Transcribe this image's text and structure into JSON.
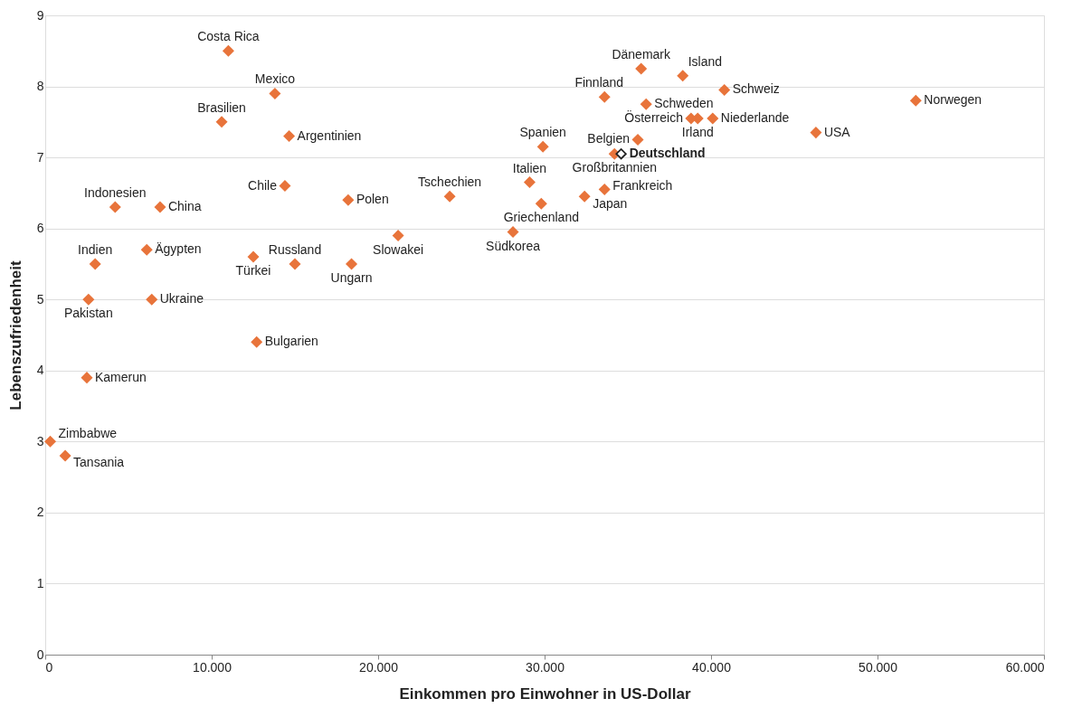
{
  "chart_data": {
    "type": "scatter",
    "xlabel": "Einkommen pro Einwohner in US-Dollar",
    "ylabel": "Lebenszufriedenheit",
    "xlim": [
      0,
      60000
    ],
    "ylim": [
      0,
      9
    ],
    "xticks": [
      0,
      {
        "value": 10000,
        "label": "10.000"
      },
      {
        "value": 20000,
        "label": "20.000"
      },
      {
        "value": 30000,
        "label": "30.000"
      },
      {
        "value": 40000,
        "label": "40.000"
      },
      {
        "value": 50000,
        "label": "50.000"
      },
      {
        "value": 60000,
        "label": "60.000"
      }
    ],
    "yticks": [
      0,
      1,
      2,
      3,
      4,
      5,
      6,
      7,
      8,
      9
    ],
    "grid": "y",
    "marker": "diamond",
    "series": [
      {
        "color": "#e8743b",
        "x": [
          11000,
          13800,
          10600,
          14650,
          14400,
          18200,
          4200,
          6900,
          3000,
          6100,
          6400,
          2600,
          12500,
          15000,
          18400,
          21200,
          12700,
          2500,
          300,
          1200,
          24300,
          29100,
          29800,
          28100,
          29900,
          32400,
          33600,
          34200,
          35600,
          33600,
          35800,
          38300,
          36100,
          38800,
          39200,
          40100,
          40800,
          46300,
          52300
        ],
        "values": [
          8.5,
          7.9,
          7.5,
          7.3,
          6.6,
          6.4,
          6.3,
          6.3,
          5.5,
          5.7,
          5.0,
          5.0,
          5.6,
          5.5,
          5.5,
          5.9,
          4.4,
          3.9,
          3.0,
          2.8,
          6.45,
          6.65,
          6.35,
          5.95,
          7.15,
          6.45,
          6.55,
          7.05,
          7.25,
          7.85,
          8.25,
          8.15,
          7.75,
          7.55,
          7.55,
          7.55,
          7.95,
          7.35,
          7.8
        ]
      },
      {
        "color": "#222222",
        "x": [
          34600
        ],
        "values": [
          7.05
        ]
      }
    ],
    "annotations": [
      {
        "text": "Costa Rica",
        "x": 11000,
        "y": 8.5
      },
      {
        "text": "Mexico",
        "x": 13800,
        "y": 7.9
      },
      {
        "text": "Brasilien",
        "x": 10600,
        "y": 7.5
      },
      {
        "text": "Argentinien",
        "x": 14650,
        "y": 7.3
      },
      {
        "text": "Chile",
        "x": 14400,
        "y": 6.6
      },
      {
        "text": "Polen",
        "x": 18200,
        "y": 6.4
      },
      {
        "text": "Indonesien",
        "x": 4200,
        "y": 6.3
      },
      {
        "text": "China",
        "x": 6900,
        "y": 6.3
      },
      {
        "text": "Indien",
        "x": 3000,
        "y": 5.5
      },
      {
        "text": "Ägypten",
        "x": 6100,
        "y": 5.7
      },
      {
        "text": "Ukraine",
        "x": 6400,
        "y": 5.0
      },
      {
        "text": "Pakistan",
        "x": 2600,
        "y": 5.0
      },
      {
        "text": "Türkei",
        "x": 12500,
        "y": 5.6
      },
      {
        "text": "Russland",
        "x": 15000,
        "y": 5.5
      },
      {
        "text": "Ungarn",
        "x": 18400,
        "y": 5.5
      },
      {
        "text": "Slowakei",
        "x": 21200,
        "y": 5.9
      },
      {
        "text": "Bulgarien",
        "x": 12700,
        "y": 4.4
      },
      {
        "text": "Kamerun",
        "x": 2500,
        "y": 3.9
      },
      {
        "text": "Zimbabwe",
        "x": 300,
        "y": 3.0
      },
      {
        "text": "Tansania",
        "x": 1200,
        "y": 2.8
      },
      {
        "text": "Tschechien",
        "x": 24300,
        "y": 6.45
      },
      {
        "text": "Italien",
        "x": 29100,
        "y": 6.65
      },
      {
        "text": "Griechenland",
        "x": 29800,
        "y": 6.35
      },
      {
        "text": "Südkorea",
        "x": 28100,
        "y": 5.95
      },
      {
        "text": "Spanien",
        "x": 29900,
        "y": 7.15
      },
      {
        "text": "Japan",
        "x": 32400,
        "y": 6.45
      },
      {
        "text": "Frankreich",
        "x": 33600,
        "y": 6.55
      },
      {
        "text": "Großbritannien",
        "x": 34200,
        "y": 7.05
      },
      {
        "text": "Belgien",
        "x": 35600,
        "y": 7.25
      },
      {
        "text": "Finnland",
        "x": 33600,
        "y": 7.85
      },
      {
        "text": "Dänemark",
        "x": 35800,
        "y": 8.25
      },
      {
        "text": "Island",
        "x": 38300,
        "y": 8.15
      },
      {
        "text": "Schweden",
        "x": 36100,
        "y": 7.75
      },
      {
        "text": "Österreich",
        "x": 38800,
        "y": 7.55
      },
      {
        "text": "Irland",
        "x": 39200,
        "y": 7.55
      },
      {
        "text": "Niederlande",
        "x": 40100,
        "y": 7.55
      },
      {
        "text": "Schweiz",
        "x": 40800,
        "y": 7.95
      },
      {
        "text": "USA",
        "x": 46300,
        "y": 7.35
      },
      {
        "text": "Norwegen",
        "x": 52300,
        "y": 7.8
      },
      {
        "text": "Deutschland",
        "x": 34600,
        "y": 7.05
      }
    ]
  }
}
